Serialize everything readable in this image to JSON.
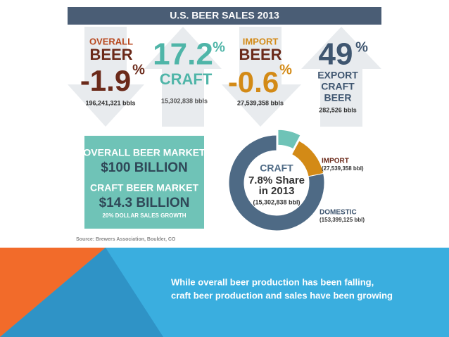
{
  "header": {
    "title": "U.S. BEER SALES 2013"
  },
  "stats": [
    {
      "top": "OVERALL",
      "main": "BEER",
      "value": "-1.9",
      "unit": "%",
      "volume": "196,241,321 bbls"
    },
    {
      "value": "17.2",
      "unit": "%",
      "main": "CRAFT",
      "volume": "15,302,838 bbls"
    },
    {
      "top": "IMPORT",
      "main": "BEER",
      "value": "-0.6",
      "unit": "%",
      "volume": "27,539,358 bbls"
    },
    {
      "value": "49",
      "unit": "%",
      "lines": [
        "EXPORT",
        "CRAFT",
        "BEER"
      ],
      "volume": "282,526 bbls"
    }
  ],
  "market": {
    "overall_label": "OVERALL BEER MARKET",
    "overall_value": "$100 BILLION",
    "craft_label": "CRAFT BEER MARKET",
    "craft_value": "$14.3 BILLION",
    "growth": "20% DOLLAR SALES GROWTH"
  },
  "donut": {
    "center": [
      "7.8% Share",
      "in 2013"
    ],
    "segments": [
      {
        "name": "CRAFT",
        "value": 15302838,
        "value_label": "(15,302,838 bbl)",
        "color": "#6fc3b7"
      },
      {
        "name": "IMPORT",
        "value": 27539358,
        "value_label": "(27,539,358 bbl)",
        "color": "#d38a16"
      },
      {
        "name": "DOMESTIC",
        "value": 153399125,
        "value_label": "(153,399,125 bbl)",
        "color": "#4e6a85"
      }
    ]
  },
  "source": "Source: Brewers Association, Boulder, CO",
  "caption": [
    "While overall beer production has been falling,",
    "craft beer production and sales have been growing"
  ]
}
